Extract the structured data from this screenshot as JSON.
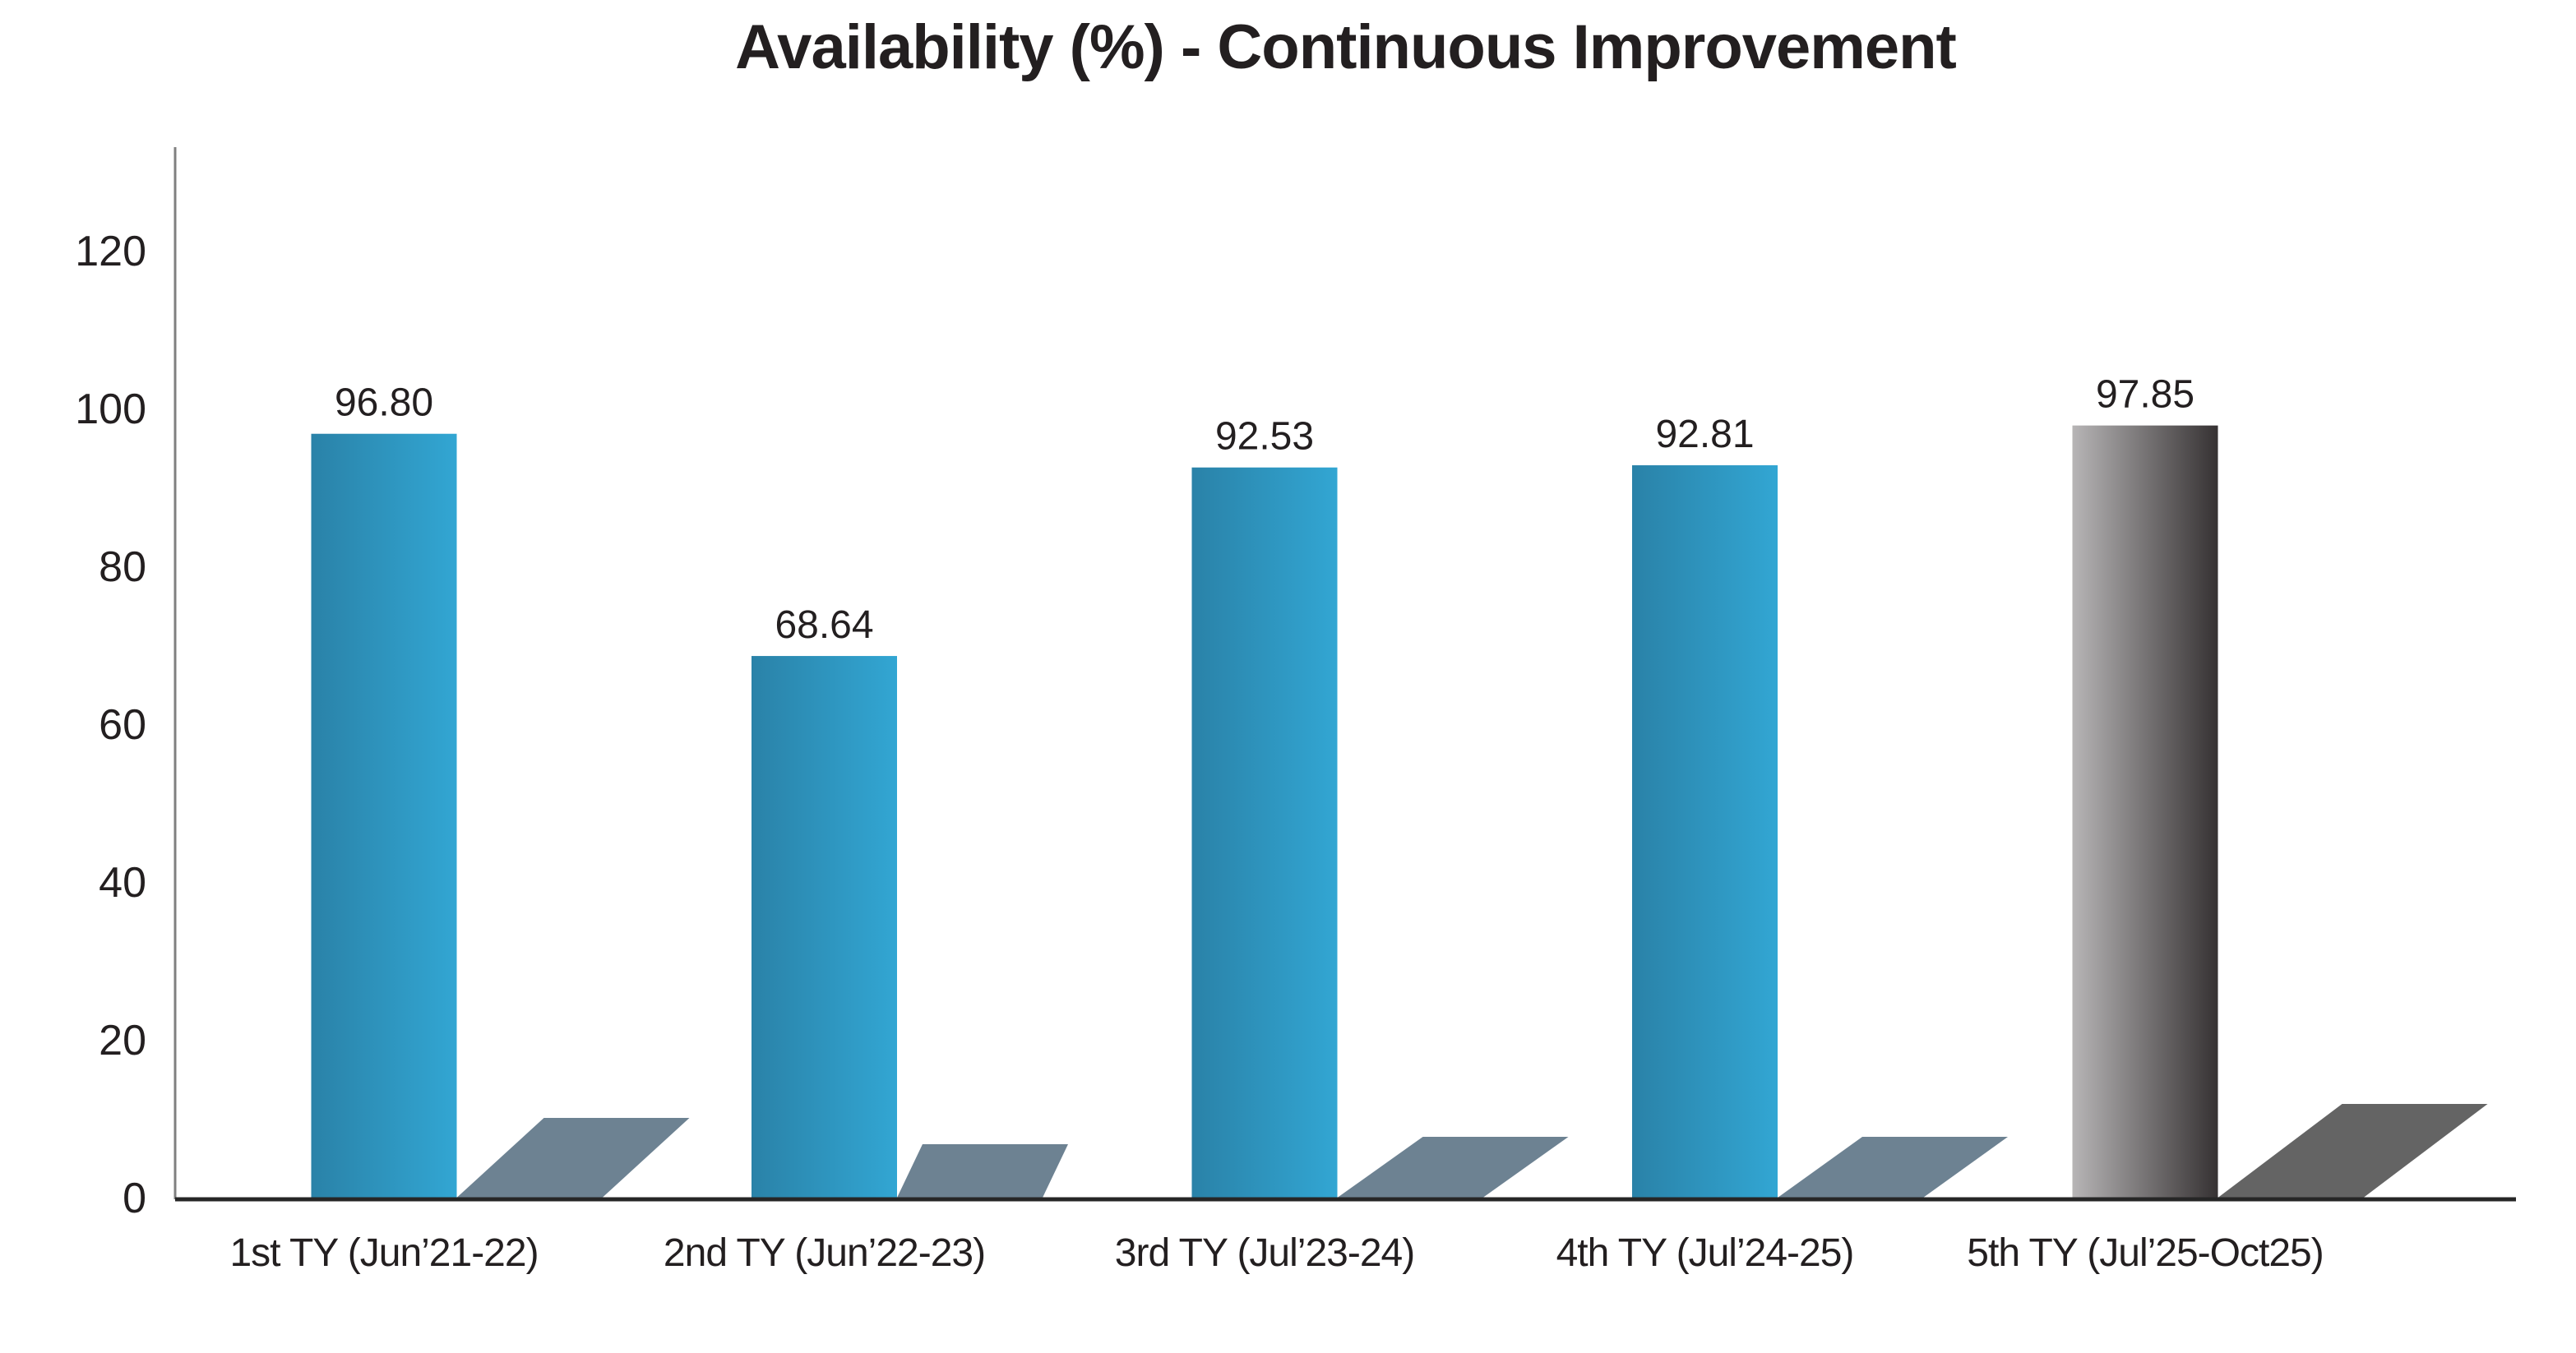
{
  "chart_data": {
    "type": "bar",
    "title": "Availability (%) - Continuous Improvement",
    "categories": [
      "1st TY (Jun’21-22)",
      "2nd TY (Jun’22-23)",
      "3rd TY (Jul’23-24)",
      "4th TY (Jul’24-25)",
      "5th TY (Jul’25-Oct25)"
    ],
    "values": [
      96.8,
      68.64,
      92.53,
      92.81,
      97.85
    ],
    "value_labels": [
      "96.80",
      "68.64",
      "92.53",
      "92.81",
      "97.85"
    ],
    "xlabel": "",
    "ylabel": "",
    "ylim": [
      0,
      133
    ],
    "yticks": [
      0,
      20,
      40,
      60,
      80,
      100,
      120
    ],
    "grid": false,
    "legend": null,
    "bar_styles": [
      "blue",
      "blue",
      "blue",
      "blue",
      "gray-gradient"
    ]
  },
  "colors": {
    "text": "#231f20",
    "blue_bar_gradient_start": "#2a82a8",
    "blue_bar_gradient_end": "#32a6d3",
    "gray_bar_gradient_start": "#b7b5b6",
    "gray_bar_gradient_end": "#363233",
    "blue_bar_shadow": "#6d8292",
    "gray_bar_shadow": "#646464",
    "y_axis_line": "#808080",
    "x_axis_line": "#262626"
  }
}
